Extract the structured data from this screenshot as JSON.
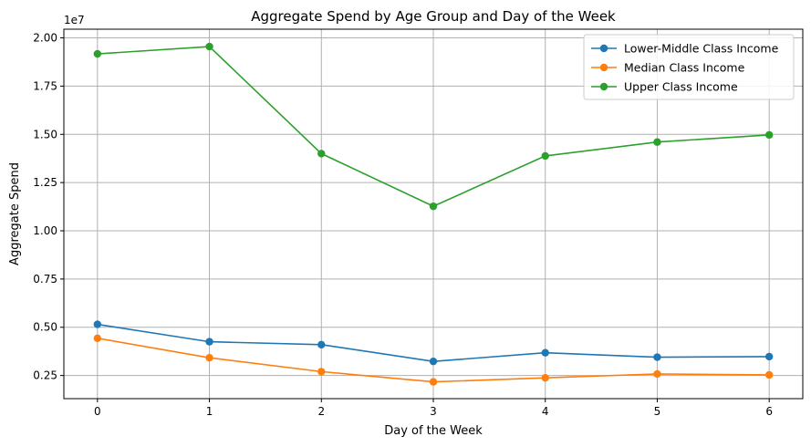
{
  "chart_data": {
    "type": "line",
    "title": "Aggregate Spend by Age Group and Day of the Week",
    "xlabel": "Day of the Week",
    "ylabel": "Aggregate Spend",
    "y_scale_note": "1e7",
    "x": [
      0,
      1,
      2,
      3,
      4,
      5,
      6
    ],
    "x_tick_labels": [
      "0",
      "1",
      "2",
      "3",
      "4",
      "5",
      "6"
    ],
    "y_ticks": [
      2500000,
      5000000,
      7500000,
      10000000,
      12500000,
      15000000,
      17500000,
      20000000
    ],
    "y_tick_labels": [
      "0.25",
      "0.50",
      "0.75",
      "1.00",
      "1.25",
      "1.50",
      "1.75",
      "2.00"
    ],
    "xlim": [
      -0.3,
      6.3
    ],
    "ylim": [
      1300000,
      20450000
    ],
    "grid": true,
    "legend_position": "top-right",
    "series": [
      {
        "name": "Lower-Middle Class Income",
        "color": "#1f77b4",
        "values": [
          5150000,
          4250000,
          4100000,
          3230000,
          3680000,
          3450000,
          3480000
        ]
      },
      {
        "name": "Median Class Income",
        "color": "#ff7f0e",
        "values": [
          4430000,
          3420000,
          2700000,
          2170000,
          2380000,
          2580000,
          2530000
        ]
      },
      {
        "name": "Upper Class Income",
        "color": "#2ca02c",
        "values": [
          19170000,
          19550000,
          14000000,
          11270000,
          13880000,
          14600000,
          14970000
        ]
      }
    ]
  }
}
